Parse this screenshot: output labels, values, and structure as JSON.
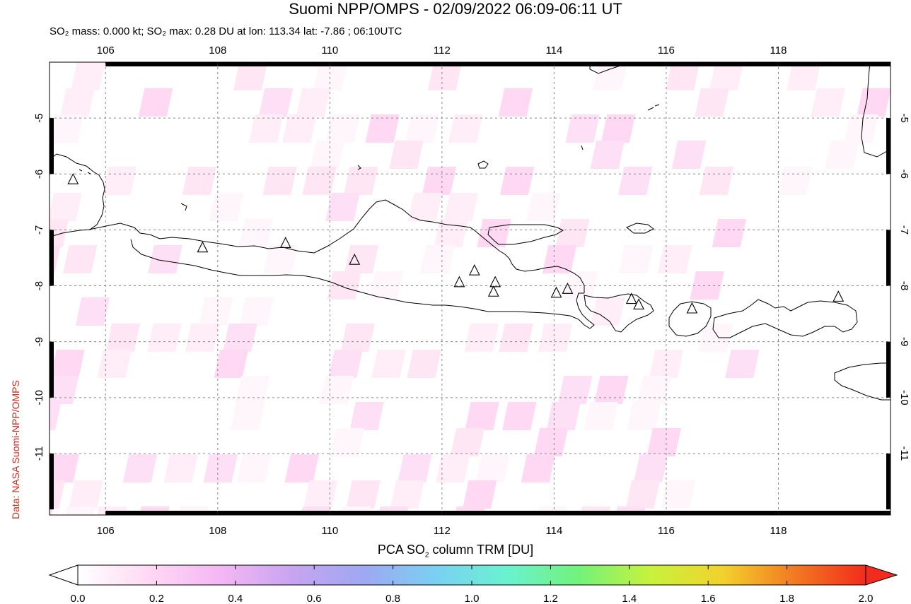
{
  "title": "Suomi NPP/OMPS - 02/09/2022 06:09-06:11 UT",
  "subtitle": {
    "so2_mass": "SO₂ mass: 0.000 kt;",
    "so2_max": "SO₂ max: 0.28 DU at lon: 113.34 lat: -7.86 ; 06:10UTC"
  },
  "credit": "Data: NASA Suomi-NPP/OMPS",
  "colorbar": {
    "title_prefix": "PCA SO",
    "title_sub": "2",
    "title_suffix": " column TRM [DU]",
    "min": 0.0,
    "max": 2.0,
    "tick_labels": [
      "0.0",
      "0.2",
      "0.4",
      "0.6",
      "0.8",
      "1.0",
      "1.2",
      "1.4",
      "1.6",
      "1.8",
      "2.0"
    ],
    "colors": [
      "#ffffff",
      "#ffd8f4",
      "#f4b6f4",
      "#c8a4f0",
      "#9ea8f2",
      "#7ad0f2",
      "#6af2d0",
      "#72f27a",
      "#c8f23c",
      "#f2d22c",
      "#f27a22",
      "#f22c1c"
    ]
  },
  "map": {
    "lon_range": [
      105,
      120
    ],
    "lat_range": [
      -12.1,
      -4.0
    ],
    "lon_ticks": [
      "106",
      "108",
      "110",
      "112",
      "114",
      "116",
      "118"
    ],
    "lat_ticks": [
      "-5",
      "-6",
      "-7",
      "-8",
      "-9",
      "-10",
      "-11"
    ],
    "gridlines": true,
    "coast_color": "#000000",
    "volcanoes": [
      {
        "lon": 105.42,
        "lat": -6.1
      },
      {
        "lon": 107.73,
        "lat": -7.32
      },
      {
        "lon": 109.21,
        "lat": -7.24
      },
      {
        "lon": 110.44,
        "lat": -7.54
      },
      {
        "lon": 112.31,
        "lat": -7.94
      },
      {
        "lon": 112.58,
        "lat": -7.73
      },
      {
        "lon": 112.95,
        "lat": -7.94
      },
      {
        "lon": 112.92,
        "lat": -8.11
      },
      {
        "lon": 114.04,
        "lat": -8.13
      },
      {
        "lon": 114.24,
        "lat": -8.06
      },
      {
        "lon": 115.38,
        "lat": -8.24
      },
      {
        "lon": 115.51,
        "lat": -8.34
      },
      {
        "lon": 116.46,
        "lat": -8.41
      },
      {
        "lon": 119.07,
        "lat": -8.2
      }
    ]
  }
}
